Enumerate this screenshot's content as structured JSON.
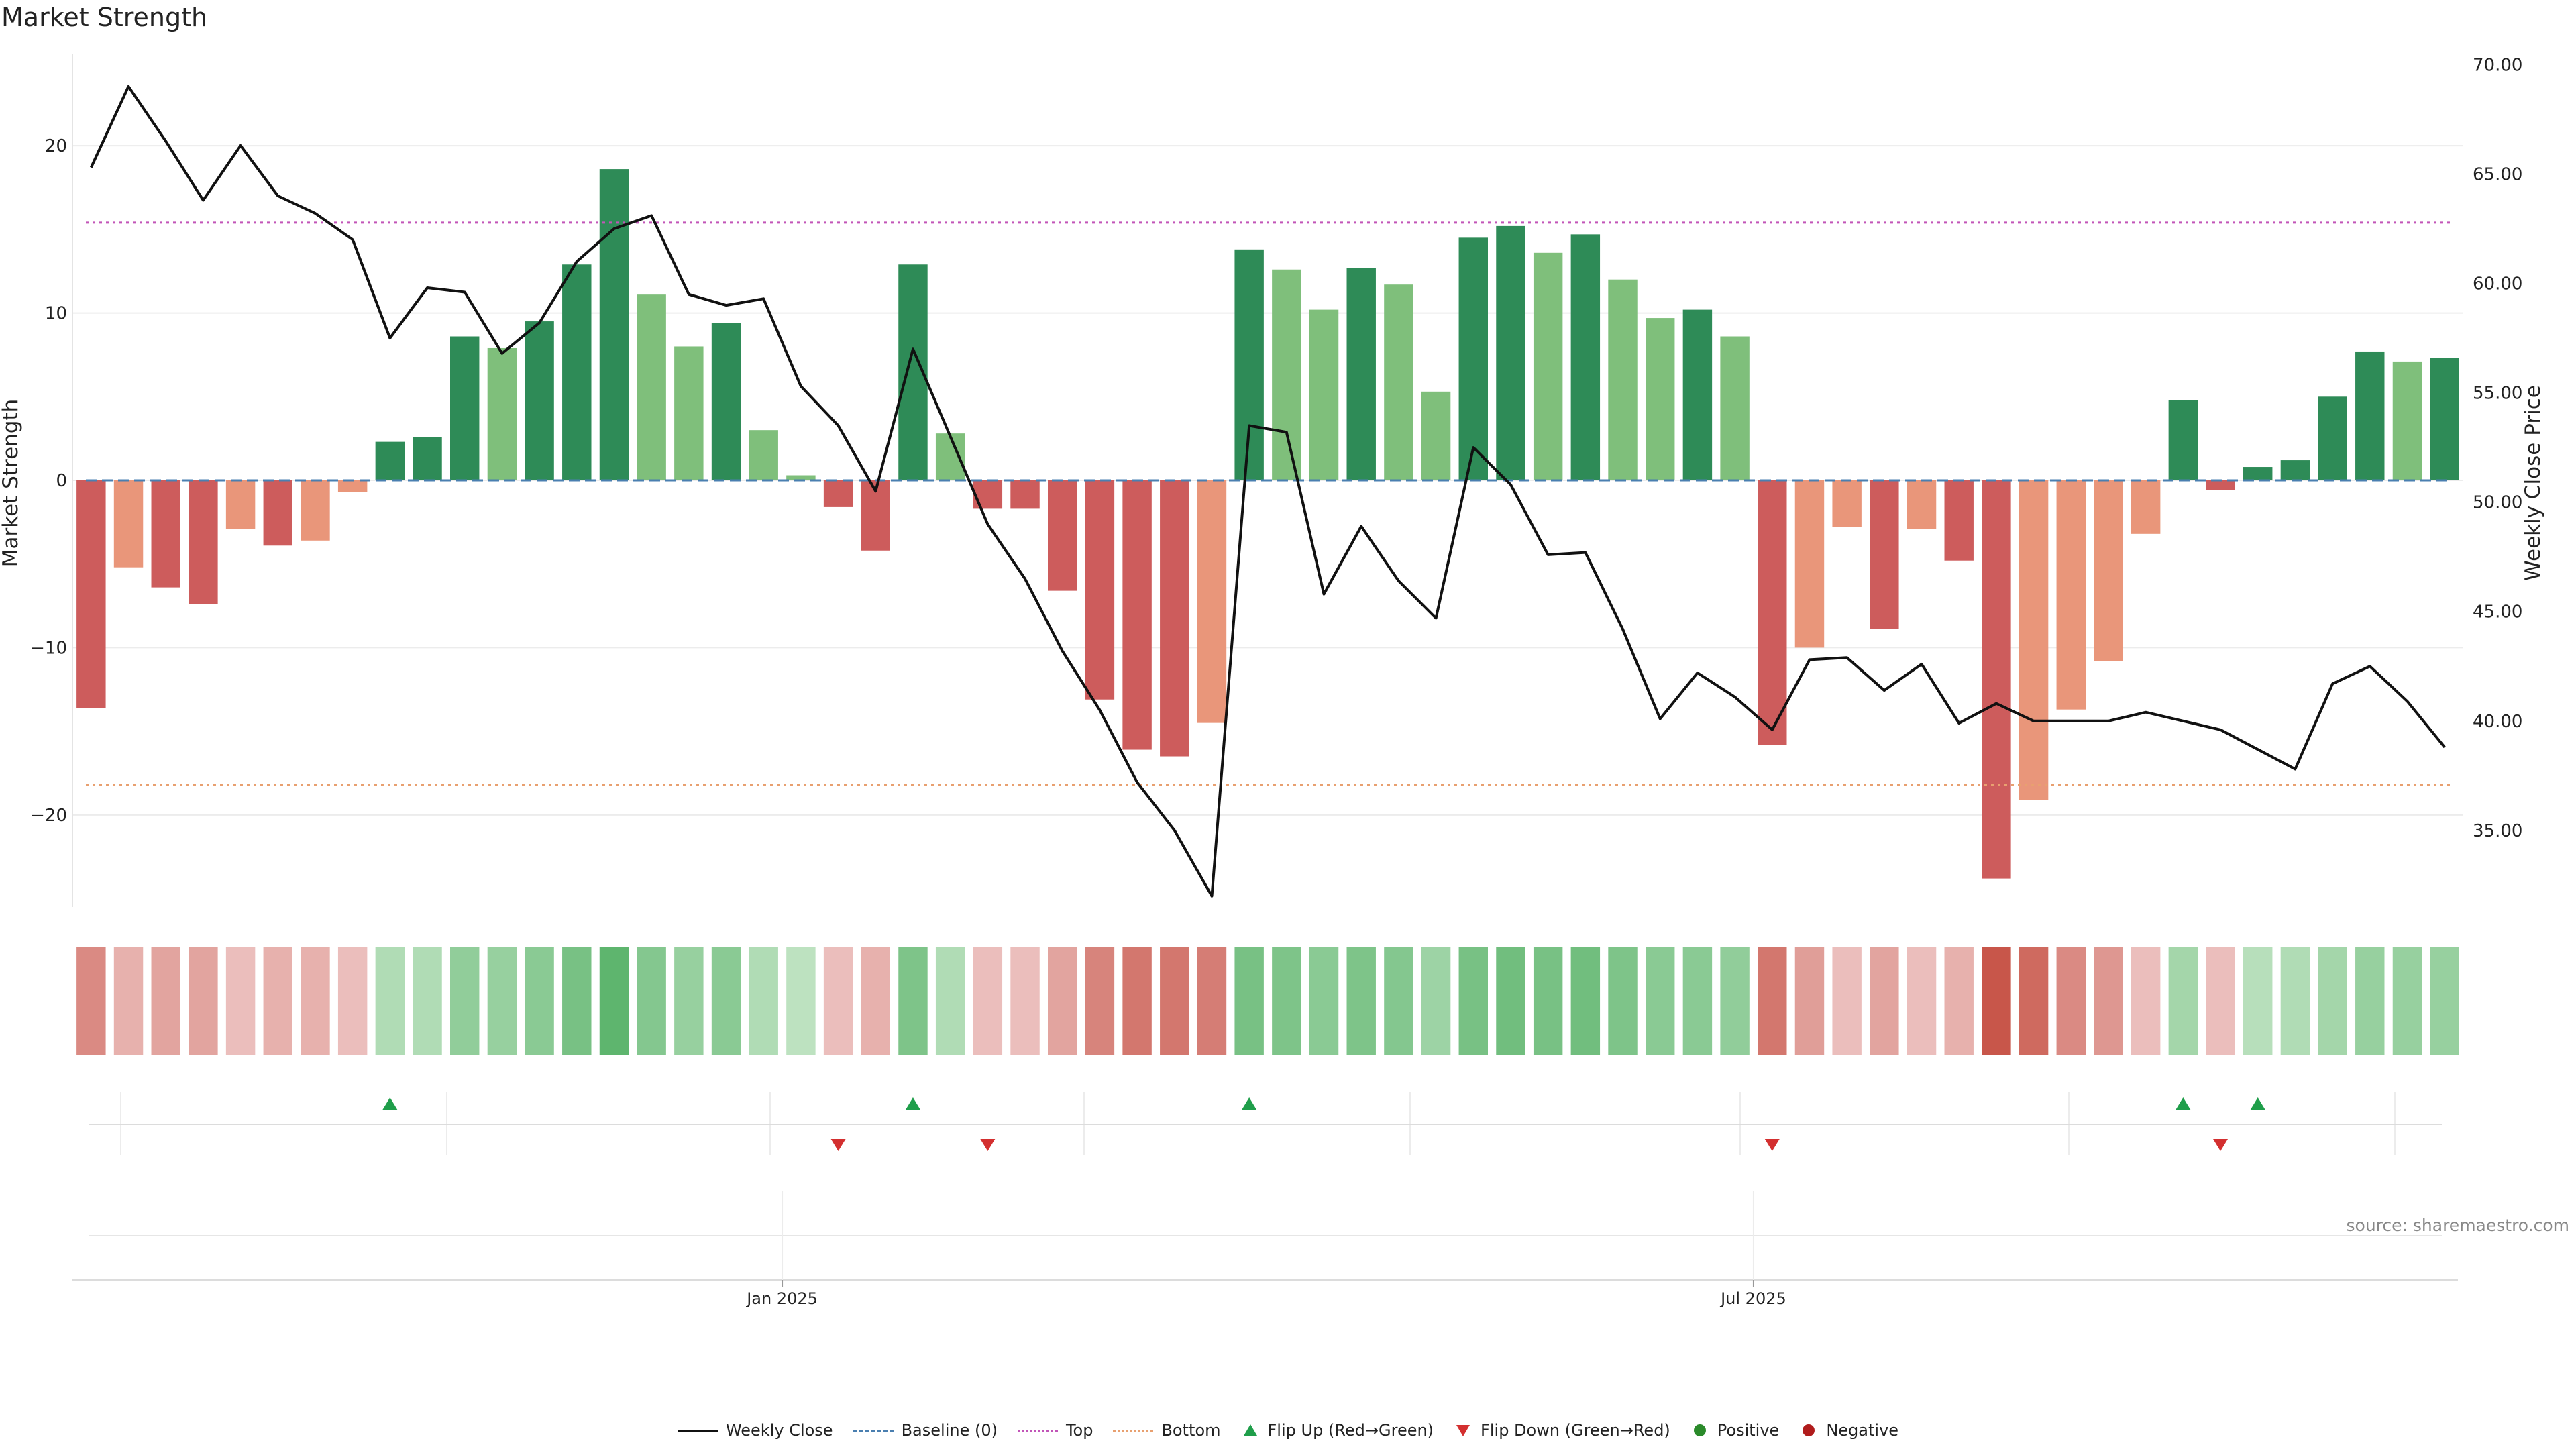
{
  "title": "Market Strength",
  "source": "source: sharemaestro.com",
  "colors": {
    "strong_green": "#2e8b57",
    "light_green": "#7fbf7b",
    "strong_red": "#cd5c5c",
    "light_red": "#e9967a",
    "price_line": "#111111",
    "baseline": "#4a7fb0",
    "top": "#c255b8",
    "bottom": "#e8a070",
    "flip_up": "#1f9e4a",
    "flip_down": "#d32f2f"
  },
  "chart_data": {
    "type": "bar",
    "title": "Market Strength",
    "ylabel": "Market Strength",
    "y2label": "Weekly Close Price",
    "ylim": [
      -25.5,
      25.5
    ],
    "y2lim": [
      31.5,
      70.5
    ],
    "yticks": [
      20,
      10,
      0,
      -10,
      -20
    ],
    "y2ticks": [
      70,
      65,
      60,
      55,
      50,
      45,
      40,
      35
    ],
    "y2tick_labels": [
      "70.00",
      "65.00",
      "60.00",
      "55.00",
      "50.00",
      "45.00",
      "40.00",
      "35.00"
    ],
    "xtick_labels": [
      {
        "week": 18.5,
        "label": "Jan 2025"
      },
      {
        "week": 44.5,
        "label": "Jul 2025"
      }
    ],
    "top_line": 15.4,
    "bottom_line": -18.2,
    "baseline": 0,
    "strength": [
      -13.6,
      -5.2,
      -6.4,
      -7.4,
      -2.9,
      -3.9,
      -3.6,
      -0.7,
      2.3,
      2.6,
      8.6,
      7.9,
      9.5,
      12.9,
      18.6,
      11.1,
      8.0,
      9.4,
      3.0,
      0.3,
      -1.6,
      -4.2,
      12.9,
      2.8,
      -1.7,
      -1.7,
      -6.6,
      -13.1,
      -16.1,
      -16.5,
      -14.5,
      13.8,
      12.6,
      10.2,
      12.7,
      11.7,
      5.3,
      14.5,
      15.2,
      13.6,
      14.7,
      12.0,
      9.7,
      10.2,
      8.6,
      -15.8,
      -10.0,
      -2.8,
      -8.9,
      -2.9,
      -4.8,
      -23.8,
      -19.1,
      -13.7,
      -10.8,
      -3.2,
      4.8,
      -0.6,
      0.8,
      1.2,
      5.0,
      7.7,
      7.1,
      7.3
    ],
    "strong": [
      true,
      false,
      true,
      true,
      false,
      true,
      false,
      false,
      true,
      true,
      true,
      false,
      true,
      true,
      true,
      false,
      false,
      true,
      false,
      false,
      true,
      true,
      true,
      false,
      true,
      true,
      true,
      true,
      true,
      true,
      false,
      true,
      false,
      false,
      true,
      false,
      false,
      true,
      true,
      false,
      true,
      false,
      false,
      true,
      false,
      true,
      false,
      false,
      true,
      false,
      true,
      true,
      false,
      false,
      false,
      false,
      true,
      true,
      true,
      true,
      true,
      true,
      false,
      true
    ],
    "weekly_close": [
      65.3,
      69.0,
      66.5,
      63.8,
      66.3,
      64.0,
      63.2,
      62.0,
      57.5,
      59.8,
      59.6,
      56.8,
      58.2,
      61.0,
      62.5,
      63.1,
      59.5,
      59.0,
      59.3,
      55.3,
      53.5,
      50.5,
      57.0,
      53.0,
      49.0,
      46.5,
      43.2,
      40.5,
      37.2,
      35.0,
      32.0,
      53.5,
      53.2,
      45.8,
      48.9,
      46.4,
      44.7,
      52.5,
      50.8,
      47.6,
      47.7,
      44.2,
      40.1,
      42.2,
      41.1,
      39.6,
      42.8,
      42.9,
      41.4,
      42.6,
      39.9,
      40.8,
      40.0,
      40.0,
      40.0,
      40.4,
      40.0,
      39.6,
      38.7,
      37.8,
      41.7,
      42.5,
      40.9,
      38.8
    ],
    "heatmap_intensity": [
      0.6,
      0.3,
      0.4,
      0.4,
      0.2,
      0.3,
      0.3,
      0.2,
      0.3,
      0.3,
      0.55,
      0.5,
      0.6,
      0.75,
      0.95,
      0.65,
      0.5,
      0.6,
      0.3,
      0.2,
      0.2,
      0.3,
      0.7,
      0.3,
      0.2,
      0.2,
      0.4,
      0.65,
      0.75,
      0.75,
      0.7,
      0.75,
      0.7,
      0.6,
      0.7,
      0.65,
      0.45,
      0.75,
      0.8,
      0.75,
      0.8,
      0.7,
      0.6,
      0.6,
      0.55,
      0.75,
      0.45,
      0.2,
      0.4,
      0.2,
      0.3,
      1.0,
      0.85,
      0.6,
      0.5,
      0.2,
      0.4,
      0.2,
      0.25,
      0.3,
      0.4,
      0.5,
      0.5,
      0.5
    ],
    "flip_up_weeks": [
      8,
      22,
      31,
      56,
      58
    ],
    "flip_down_weeks": [
      20,
      24,
      45,
      57
    ],
    "legend": [
      "Weekly Close",
      "Baseline (0)",
      "Top",
      "Bottom",
      "Flip Up (Red→Green)",
      "Flip Down (Green→Red)",
      "Positive",
      "Negative"
    ]
  }
}
